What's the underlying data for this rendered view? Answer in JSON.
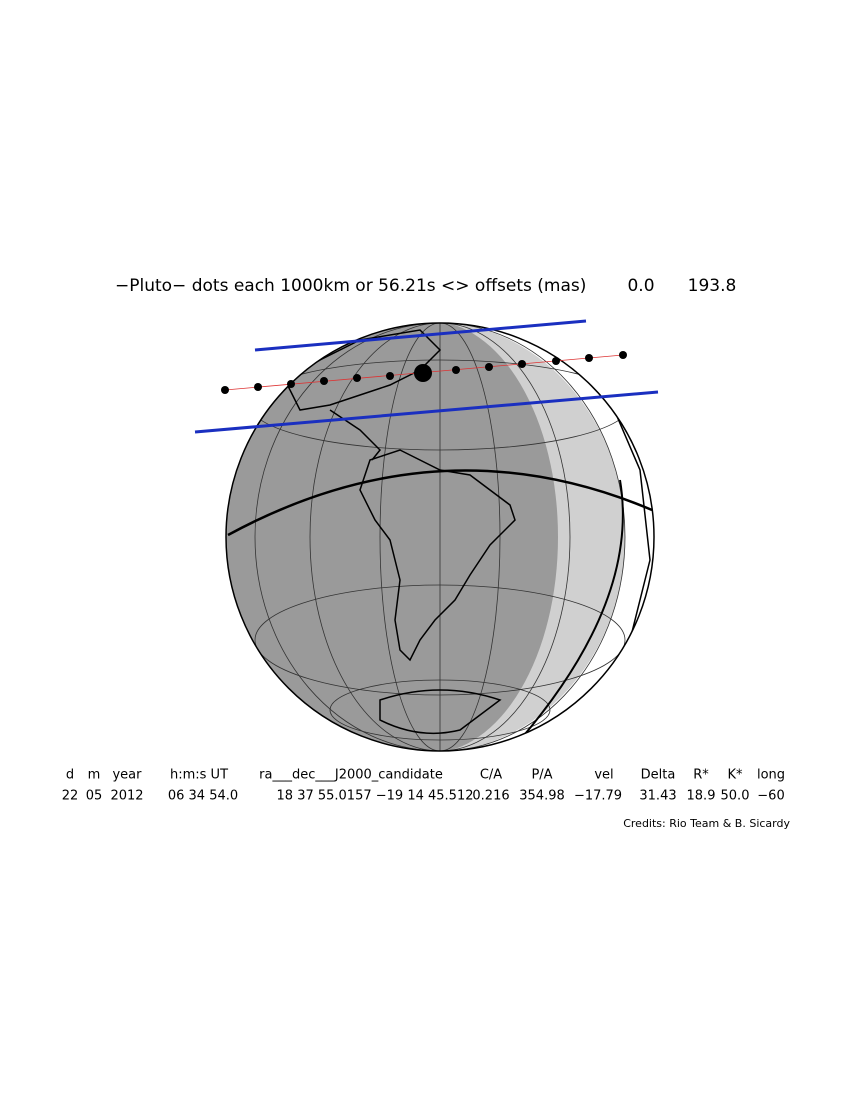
{
  "header": {
    "title": "−Pluto− dots each 1000km or 56.21s <> offsets (mas)",
    "offset_1": "0.0",
    "offset_2": "193.8"
  },
  "table": {
    "headers": [
      "d",
      "m",
      "year",
      "h:m:s UT",
      "ra___dec___J2000_candidate",
      "C/A",
      "P/A",
      "vel",
      "Delta",
      "R*",
      "K*",
      "long"
    ],
    "values": [
      "22",
      "05",
      "2012",
      "06 34 54.0",
      "18 37 55.0157 −19 14 45.512",
      "0.216",
      "354.98",
      "−17.79",
      "31.43",
      "18.9",
      "50.0",
      "−60"
    ]
  },
  "credits": "Credits: Rio Team & B. Sicardy"
}
